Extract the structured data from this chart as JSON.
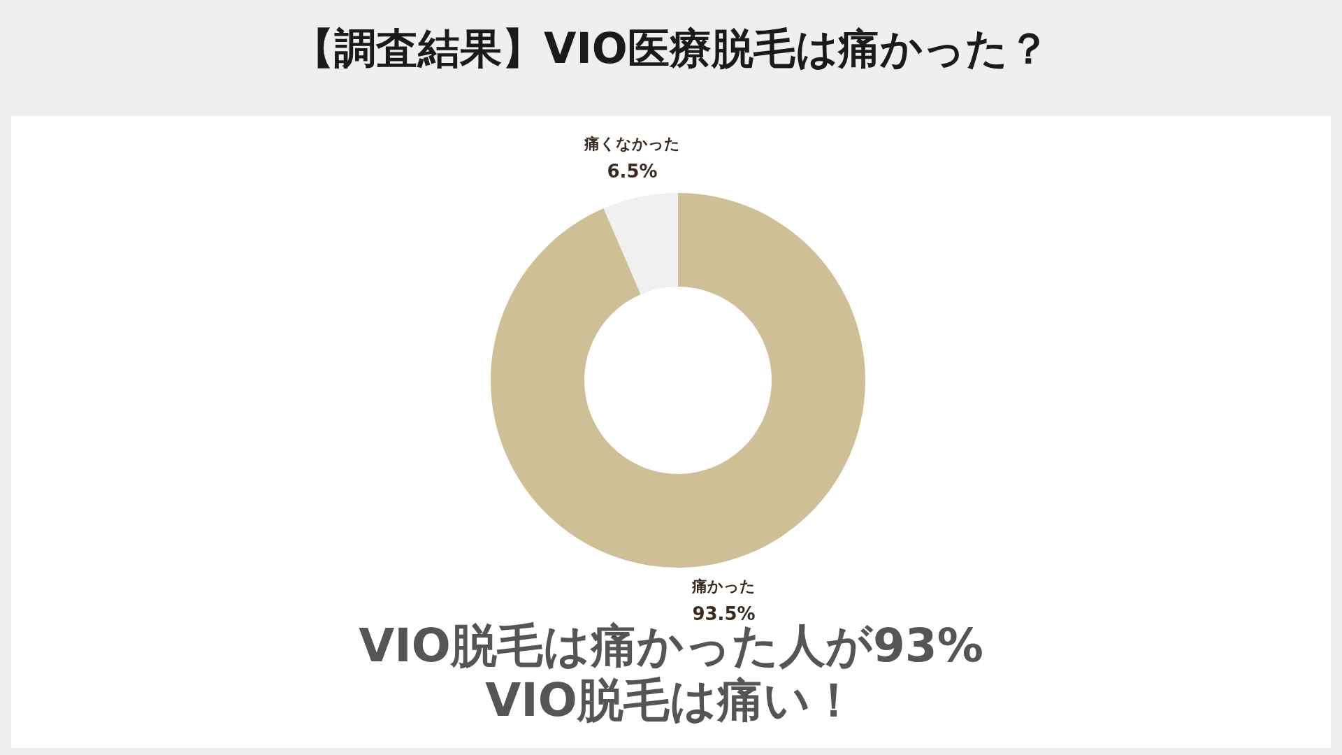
{
  "chart_data": {
    "type": "donut",
    "title": "【調査結果】VIO医療脱毛は痛かった？",
    "categories": [
      "痛かった",
      "痛くなかった"
    ],
    "values": [
      93.5,
      6.5
    ],
    "colors": [
      "#cfbf96",
      "#f0f0f0"
    ],
    "value_labels": [
      "93.5%",
      "6.5%"
    ],
    "annotations": [
      "VIO脱毛は痛かった人が93%",
      "VIO脱毛は痛い！"
    ]
  }
}
